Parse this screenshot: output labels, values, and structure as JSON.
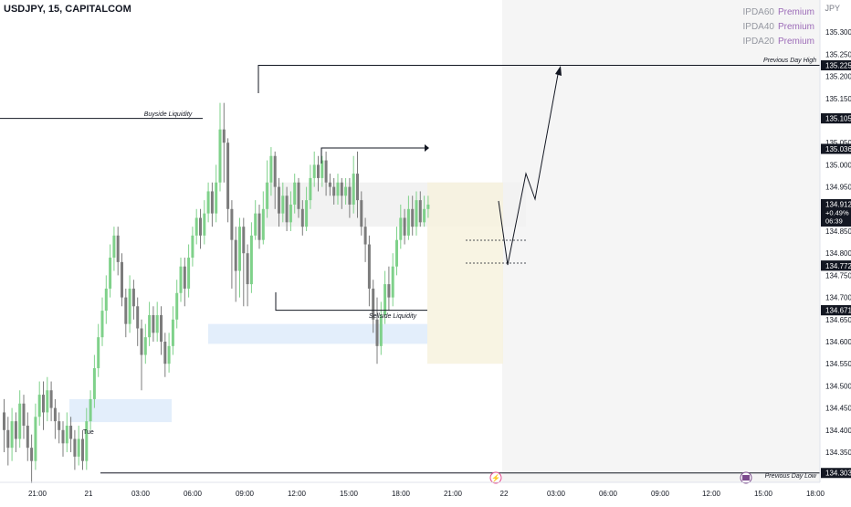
{
  "header": {
    "title": "USDJPY, 15, CAPITALCOM",
    "currency": "JPY"
  },
  "ipda": [
    {
      "label": "IPDA60",
      "value": "Premium"
    },
    {
      "label": "IPDA40",
      "value": "Premium"
    },
    {
      "label": "IPDA20",
      "value": "Premium"
    }
  ],
  "colors": {
    "up": "#7fd18a",
    "down": "#7c7c7c",
    "range_box": "#f2f2f2",
    "fvg_box": "#e3eefb",
    "zone_box": "#f7f2de",
    "black_label": "#131722"
  },
  "chart_data": {
    "type": "candlestick",
    "interval": "15",
    "ylim": [
      134.28,
      135.38
    ],
    "y_ticks": [
      "135.300",
      "135.250",
      "135.200",
      "135.150",
      "135.100",
      "135.050",
      "135.000",
      "134.950",
      "134.900",
      "134.850",
      "134.800",
      "134.750",
      "134.700",
      "134.650",
      "134.600",
      "134.550",
      "134.500",
      "134.450",
      "134.400",
      "134.350"
    ],
    "x_ticks": [
      "21:00",
      "21",
      "03:00",
      "06:00",
      "09:00",
      "12:00",
      "15:00",
      "18:00",
      "21:00",
      "22",
      "03:00",
      "06:00",
      "09:00",
      "12:00",
      "15:00",
      "18:00"
    ],
    "price_labels": [
      {
        "value": "135.225"
      },
      {
        "value": "135.105"
      },
      {
        "value": "135.105"
      },
      {
        "value": "135.036"
      },
      {
        "value": "135.036"
      },
      {
        "value": "134.912",
        "extra": [
          "+0.49%",
          "06:39"
        ],
        "kind": "last"
      },
      {
        "value": "134.772"
      },
      {
        "value": "134.772"
      },
      {
        "value": "134.671"
      },
      {
        "value": "134.671"
      },
      {
        "value": "134.303"
      }
    ],
    "annotations": {
      "buyside": "Buyside Liquidity",
      "sellside": "Sellside Liquidity",
      "pdh": "Previous Day High",
      "pdl": "Previous Day Low",
      "small": "Tue"
    },
    "levels": {
      "pdh": 135.225,
      "pdl": 134.303,
      "buyside": 135.105,
      "sellside": 134.671
    },
    "candles": [
      [
        134.44,
        134.4,
        134.47,
        134.35
      ],
      [
        134.4,
        134.36,
        134.43,
        134.32
      ],
      [
        134.36,
        134.42,
        134.45,
        134.33
      ],
      [
        134.42,
        134.38,
        134.44,
        134.35
      ],
      [
        134.38,
        134.46,
        134.49,
        134.36
      ],
      [
        134.46,
        134.41,
        134.48,
        134.38
      ],
      [
        134.41,
        134.36,
        134.44,
        134.33
      ],
      [
        134.36,
        134.33,
        134.39,
        134.28
      ],
      [
        134.33,
        134.43,
        134.46,
        134.31
      ],
      [
        134.43,
        134.48,
        134.51,
        134.41
      ],
      [
        134.48,
        134.44,
        134.51,
        134.4
      ],
      [
        134.44,
        134.49,
        134.52,
        134.42
      ],
      [
        134.49,
        134.45,
        134.51,
        134.42
      ],
      [
        134.45,
        134.42,
        134.47,
        134.38
      ],
      [
        134.42,
        134.4,
        134.44,
        134.37
      ],
      [
        134.4,
        134.37,
        134.42,
        134.34
      ],
      [
        134.37,
        134.41,
        134.44,
        134.35
      ],
      [
        134.41,
        134.38,
        134.43,
        134.35
      ],
      [
        134.38,
        134.34,
        134.4,
        134.31
      ],
      [
        134.34,
        134.38,
        134.41,
        134.32
      ],
      [
        134.38,
        134.33,
        134.4,
        134.31
      ],
      [
        134.33,
        134.42,
        134.45,
        134.31
      ],
      [
        134.42,
        134.47,
        134.49,
        134.4
      ],
      [
        134.47,
        134.54,
        134.57,
        134.45
      ],
      [
        134.54,
        134.61,
        134.64,
        134.52
      ],
      [
        134.61,
        134.67,
        134.7,
        134.59
      ],
      [
        134.67,
        134.72,
        134.75,
        134.64
      ],
      [
        134.72,
        134.79,
        134.82,
        134.7
      ],
      [
        134.79,
        134.84,
        134.86,
        134.76
      ],
      [
        134.84,
        134.78,
        134.86,
        134.75
      ],
      [
        134.78,
        134.7,
        134.8,
        134.68
      ],
      [
        134.7,
        134.64,
        134.72,
        134.61
      ],
      [
        134.64,
        134.72,
        134.75,
        134.62
      ],
      [
        134.72,
        134.68,
        134.74,
        134.65
      ],
      [
        134.68,
        134.63,
        134.7,
        134.59
      ],
      [
        134.63,
        134.57,
        134.65,
        134.49
      ],
      [
        134.57,
        134.61,
        134.64,
        134.55
      ],
      [
        134.61,
        134.66,
        134.69,
        134.59
      ],
      [
        134.66,
        134.62,
        134.68,
        134.6
      ],
      [
        134.62,
        134.66,
        134.69,
        134.6
      ],
      [
        134.66,
        134.6,
        134.68,
        134.57
      ],
      [
        134.6,
        134.55,
        134.62,
        134.52
      ],
      [
        134.55,
        134.59,
        134.62,
        134.53
      ],
      [
        134.59,
        134.65,
        134.68,
        134.57
      ],
      [
        134.65,
        134.71,
        134.74,
        134.63
      ],
      [
        134.71,
        134.77,
        134.79,
        134.69
      ],
      [
        134.77,
        134.72,
        134.79,
        134.68
      ],
      [
        134.72,
        134.79,
        134.82,
        134.7
      ],
      [
        134.79,
        134.84,
        134.86,
        134.77
      ],
      [
        134.84,
        134.88,
        134.9,
        134.82
      ],
      [
        134.88,
        134.84,
        134.9,
        134.81
      ],
      [
        134.84,
        134.89,
        134.92,
        134.82
      ],
      [
        134.89,
        134.94,
        134.96,
        134.87
      ],
      [
        134.94,
        134.89,
        134.96,
        134.86
      ],
      [
        134.89,
        134.96,
        135.0,
        134.87
      ],
      [
        134.96,
        135.08,
        135.14,
        134.94
      ],
      [
        135.08,
        135.05,
        135.14,
        134.96
      ],
      [
        135.05,
        134.9,
        135.06,
        134.87
      ],
      [
        134.9,
        134.83,
        134.92,
        134.72
      ],
      [
        134.83,
        134.76,
        134.86,
        134.69
      ],
      [
        134.76,
        134.86,
        134.88,
        134.7
      ],
      [
        134.86,
        134.8,
        134.88,
        134.68
      ],
      [
        134.8,
        134.73,
        134.82,
        134.68
      ],
      [
        134.73,
        134.84,
        134.87,
        134.71
      ],
      [
        134.84,
        134.89,
        134.92,
        134.83
      ],
      [
        134.89,
        134.83,
        134.91,
        134.81
      ],
      [
        134.83,
        134.9,
        134.94,
        134.82
      ],
      [
        134.9,
        134.96,
        135.01,
        134.88
      ],
      [
        134.96,
        135.02,
        135.04,
        134.93
      ],
      [
        135.02,
        134.95,
        135.03,
        134.9
      ],
      [
        134.95,
        134.89,
        134.97,
        134.86
      ],
      [
        134.89,
        134.93,
        134.96,
        134.87
      ],
      [
        134.93,
        134.87,
        134.95,
        134.85
      ],
      [
        134.87,
        134.91,
        134.94,
        134.85
      ],
      [
        134.91,
        134.96,
        134.98,
        134.89
      ],
      [
        134.96,
        134.9,
        134.97,
        134.88
      ],
      [
        134.9,
        134.86,
        134.92,
        134.84
      ],
      [
        134.86,
        134.92,
        134.95,
        134.85
      ],
      [
        134.92,
        134.97,
        135.0,
        134.9
      ],
      [
        134.97,
        135.0,
        135.03,
        134.95
      ],
      [
        135.0,
        134.97,
        135.02,
        134.94
      ],
      [
        134.97,
        135.01,
        135.02,
        134.95
      ],
      [
        135.01,
        134.96,
        135.03,
        134.93
      ],
      [
        134.96,
        134.95,
        134.98,
        134.93
      ],
      [
        134.95,
        134.93,
        134.97,
        134.91
      ],
      [
        134.93,
        134.96,
        134.98,
        134.91
      ],
      [
        134.96,
        134.93,
        134.97,
        134.9
      ],
      [
        134.93,
        134.95,
        134.97,
        134.91
      ],
      [
        134.95,
        134.91,
        134.97,
        134.88
      ],
      [
        134.91,
        134.98,
        135.02,
        134.89
      ],
      [
        134.98,
        134.92,
        135.03,
        134.88
      ],
      [
        134.92,
        134.86,
        134.94,
        134.84
      ],
      [
        134.86,
        134.82,
        134.88,
        134.78
      ],
      [
        134.82,
        134.72,
        134.84,
        134.68
      ],
      [
        134.72,
        134.65,
        134.74,
        134.62
      ],
      [
        134.65,
        134.59,
        134.7,
        134.55
      ],
      [
        134.59,
        134.66,
        134.69,
        134.57
      ],
      [
        134.66,
        134.73,
        134.76,
        134.64
      ],
      [
        134.73,
        134.7,
        134.77,
        134.67
      ],
      [
        134.7,
        134.77,
        134.8,
        134.68
      ],
      [
        134.77,
        134.83,
        134.86,
        134.75
      ],
      [
        134.83,
        134.88,
        134.91,
        134.81
      ],
      [
        134.88,
        134.84,
        134.9,
        134.82
      ],
      [
        134.84,
        134.9,
        134.93,
        134.83
      ],
      [
        134.9,
        134.86,
        134.93,
        134.84
      ],
      [
        134.86,
        134.92,
        134.94,
        134.84
      ],
      [
        134.92,
        134.87,
        134.94,
        134.86
      ],
      [
        134.87,
        134.9,
        134.93,
        134.86
      ],
      [
        134.9,
        134.91,
        134.93,
        134.88
      ]
    ],
    "projection": [
      134.91,
      134.85,
      134.82,
      134.78,
      134.86,
      134.97,
      134.94,
      135.225
    ]
  }
}
